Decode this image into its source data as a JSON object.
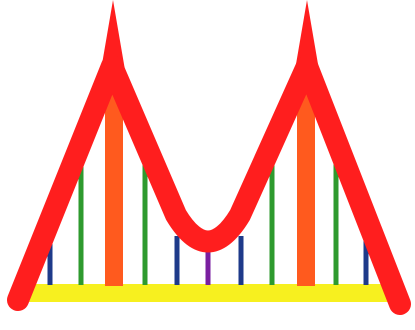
{
  "logo": {
    "description_role": "bridge-logo",
    "colors": {
      "background": "#ffffff",
      "arch": "#ff1e1e",
      "tower": "#ff5a1e",
      "cable_green": "#2e9a2e",
      "cable_blue": "#1e3a8a",
      "cable_purple": "#7a1fa0",
      "deck": "#f7f01f"
    },
    "icons": [
      "bridge-arch-icon",
      "tower-spire-icon",
      "deck-bar-icon",
      "suspension-cable-icon"
    ]
  }
}
